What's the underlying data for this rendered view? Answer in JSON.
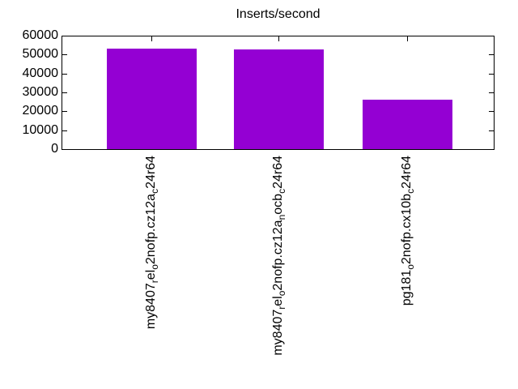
{
  "chart_data": {
    "type": "bar",
    "title": "Inserts/second",
    "xlabel": "",
    "ylabel": "",
    "ylim": [
      0,
      60000
    ],
    "ytick_step": 10000,
    "yticks": [
      0,
      10000,
      20000,
      30000,
      40000,
      50000,
      60000
    ],
    "ytick_labels": [
      "0",
      "10000",
      "20000",
      "30000",
      "40000",
      "50000",
      "60000"
    ],
    "categories": [
      "my8407_rel_o2nofp.cz12a_c24r64",
      "my8407_rel_o2nofp.cz12a_nocb_c24r64",
      "pg181_o2nofp.cx10b_c24r64"
    ],
    "category_segments": [
      [
        {
          "t": "my8407"
        },
        {
          "t": "r",
          "sub": true
        },
        {
          "t": "el"
        },
        {
          "t": "o",
          "sub": true
        },
        {
          "t": "2nofp.cz12a"
        },
        {
          "t": "c",
          "sub": true
        },
        {
          "t": "24r64"
        }
      ],
      [
        {
          "t": "my8407"
        },
        {
          "t": "r",
          "sub": true
        },
        {
          "t": "el"
        },
        {
          "t": "o",
          "sub": true
        },
        {
          "t": "2nofp.cz12a"
        },
        {
          "t": "n",
          "sub": true
        },
        {
          "t": "ocb"
        },
        {
          "t": "c",
          "sub": true
        },
        {
          "t": "24r64"
        }
      ],
      [
        {
          "t": "pg181"
        },
        {
          "t": "o",
          "sub": true
        },
        {
          "t": "2nofp.cx10b"
        },
        {
          "t": "c",
          "sub": true
        },
        {
          "t": "24r64"
        }
      ]
    ],
    "values": [
      53300,
      52500,
      26100
    ],
    "bar_color": "#9400d3",
    "axis_color": "#000000",
    "background_color": "#ffffff",
    "grid": false,
    "legend": null,
    "ticks_mirrored_inward": true
  }
}
